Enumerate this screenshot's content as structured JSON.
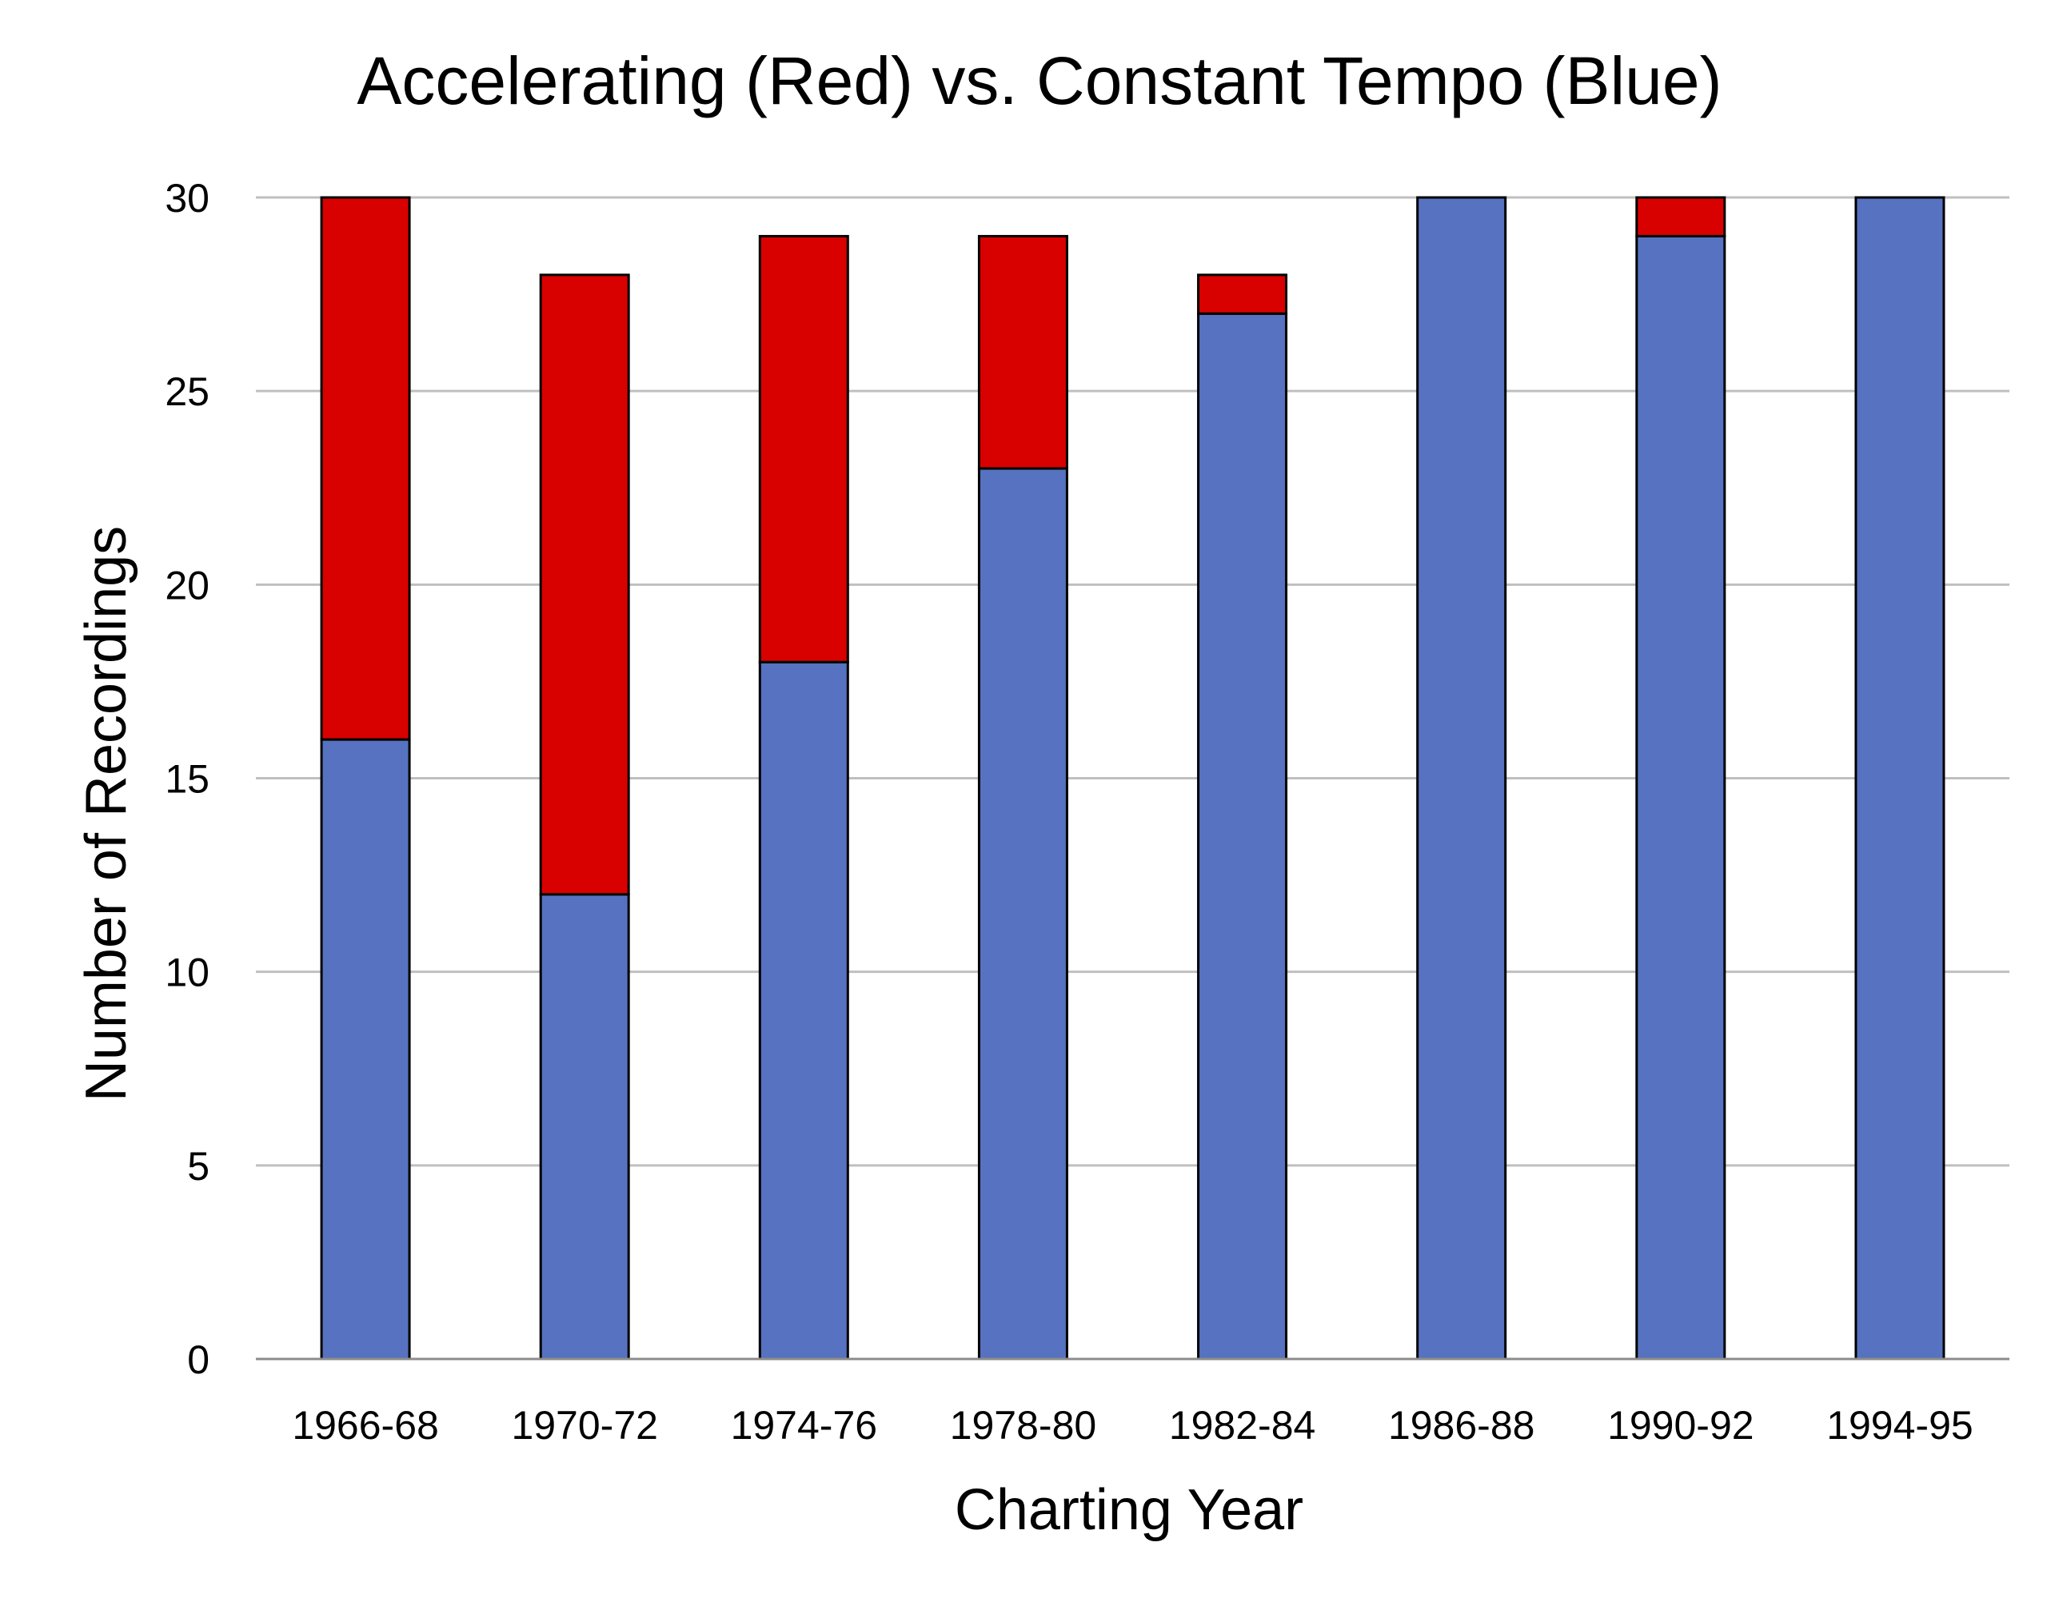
{
  "chart_data": {
    "type": "bar",
    "stacked": true,
    "title": "Accelerating (Red) vs. Constant Tempo (Blue)",
    "xlabel": "Charting Year",
    "ylabel": "Number of Recordings",
    "categories": [
      "1966-68",
      "1970-72",
      "1974-76",
      "1978-80",
      "1982-84",
      "1986-88",
      "1990-92",
      "1994-95"
    ],
    "series": [
      {
        "color": "#5672c0",
        "values": [
          16,
          12,
          18,
          23,
          27,
          30,
          29,
          30
        ]
      },
      {
        "color": "#d90000",
        "values": [
          14,
          16,
          11,
          6,
          1,
          0,
          1,
          0
        ]
      }
    ],
    "ylim": [
      0,
      30
    ],
    "yticks": [
      0,
      5,
      10,
      15,
      20,
      25,
      30
    ],
    "grid": true,
    "legend": "none"
  }
}
